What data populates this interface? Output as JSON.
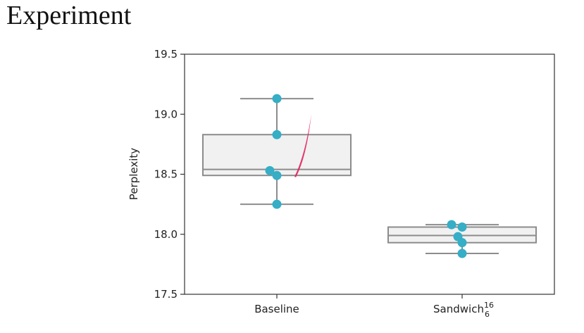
{
  "slide": {
    "title": "Experiment"
  },
  "chart_data": {
    "type": "box",
    "title": "",
    "xlabel": "",
    "ylabel": "Perplexity",
    "ylim": [
      17.5,
      19.5
    ],
    "yticks": [
      17.5,
      18.0,
      18.5,
      19.0,
      19.5
    ],
    "ytick_labels": [
      "17.5",
      "18.0",
      "18.5",
      "19.0",
      "19.5"
    ],
    "grid": false,
    "categories": [
      {
        "label": "Baseline",
        "sub": "",
        "sup": ""
      },
      {
        "label": "Sandwich",
        "sub": "6",
        "sup": "16"
      }
    ],
    "boxes": [
      {
        "whisker_low": 18.25,
        "q1": 18.49,
        "median": 18.54,
        "q3": 18.83,
        "whisker_high": 19.13
      },
      {
        "whisker_low": 17.84,
        "q1": 17.93,
        "median": 17.99,
        "q3": 18.06,
        "whisker_high": 18.08
      }
    ],
    "points": [
      [
        19.13,
        18.83,
        18.53,
        18.49,
        18.25
      ],
      [
        18.08,
        18.06,
        17.98,
        17.93,
        17.84
      ]
    ],
    "annotation": {
      "type": "pen-stroke",
      "color": "#e0245e",
      "from": 18.48,
      "to": 19.0
    },
    "colors": {
      "box_fill": "#f1f1f1",
      "box_stroke": "#8c8c8c",
      "point": "#35aec6",
      "axis": "#333333"
    }
  }
}
